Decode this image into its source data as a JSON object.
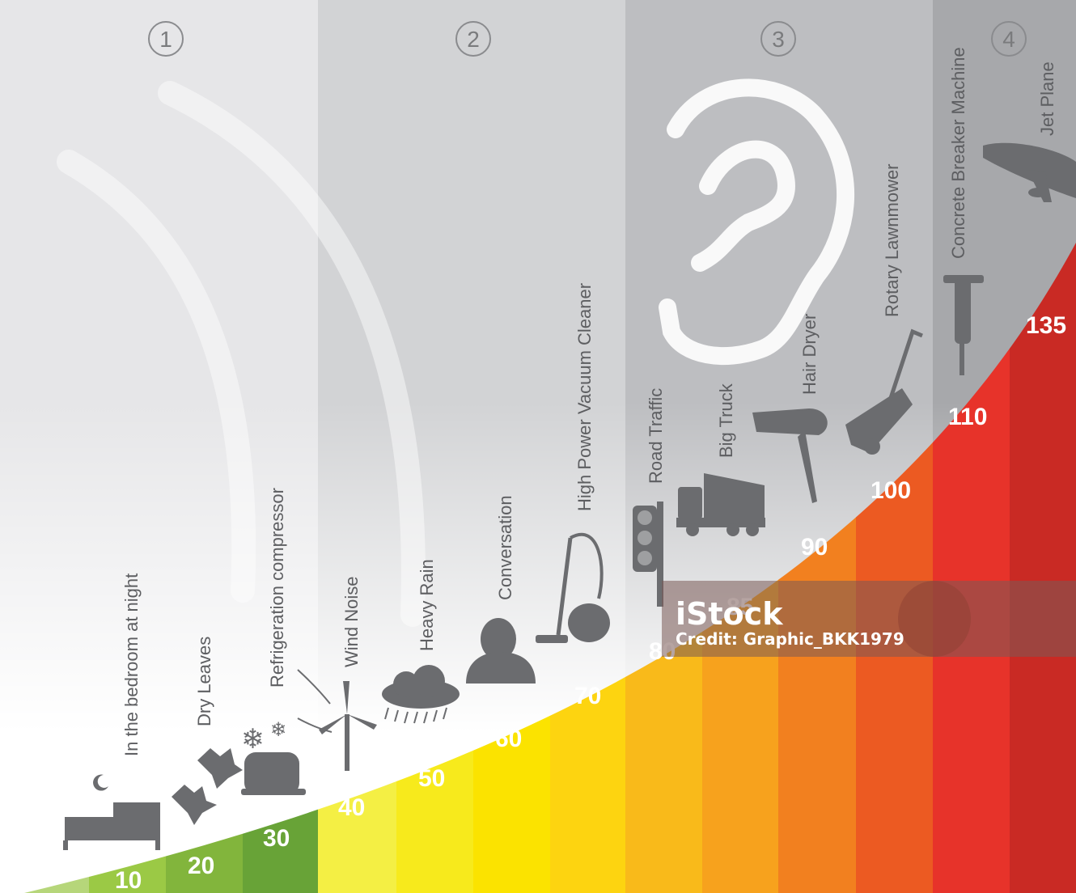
{
  "zones": [
    {
      "number": "1"
    },
    {
      "number": "2"
    },
    {
      "number": "3"
    },
    {
      "number": "4"
    }
  ],
  "levels": [
    {
      "db": "10",
      "color": "#9bc945",
      "icon": "bed-icon"
    },
    {
      "db": "20",
      "color": "#82b53c",
      "icon": "leaves-icon"
    },
    {
      "db": "30",
      "color": "#68a337",
      "icon": "compressor-icon"
    },
    {
      "db": "40",
      "color": "#f4ef44",
      "label": "Wind Noise",
      "icon": "wind-turbine-icon"
    },
    {
      "db": "50",
      "color": "#f7ea1c",
      "label": "Heavy Rain",
      "icon": "rain-cloud-icon"
    },
    {
      "db": "60",
      "color": "#fbe300",
      "label": "Conversation",
      "icon": "person-speaking-icon"
    },
    {
      "db": "70",
      "color": "#fdd410",
      "label": "High Power Vacuum Cleaner",
      "icon": "vacuum-cleaner-icon"
    },
    {
      "db": "80",
      "color": "#f9ba1a",
      "label": "Road Traffic",
      "icon": "traffic-light-icon"
    },
    {
      "db": "85",
      "color": "#f7a21d",
      "label": "Big Truck",
      "icon": "truck-icon"
    },
    {
      "db": "90",
      "color": "#f2801f",
      "label": "Hair Dryer",
      "icon": "hair-dryer-icon"
    },
    {
      "db": "100",
      "color": "#ec5a22",
      "label": "Rotary Lawnmower",
      "icon": "lawnmower-icon"
    },
    {
      "db": "110",
      "color": "#e7332a",
      "label": "Concrete Breaker Machine",
      "icon": "jackhammer-icon"
    },
    {
      "db": "135",
      "color": "#c92a24",
      "label": "Jet Plane",
      "icon": "airplane-icon"
    }
  ],
  "low_labels": [
    {
      "label": "In the bedroom at night"
    },
    {
      "label": "Dry Leaves"
    },
    {
      "label": "Refrigeration compressor"
    }
  ],
  "watermark": {
    "logo": "iStock",
    "credit": "Credit: Graphic_BKK1979"
  }
}
